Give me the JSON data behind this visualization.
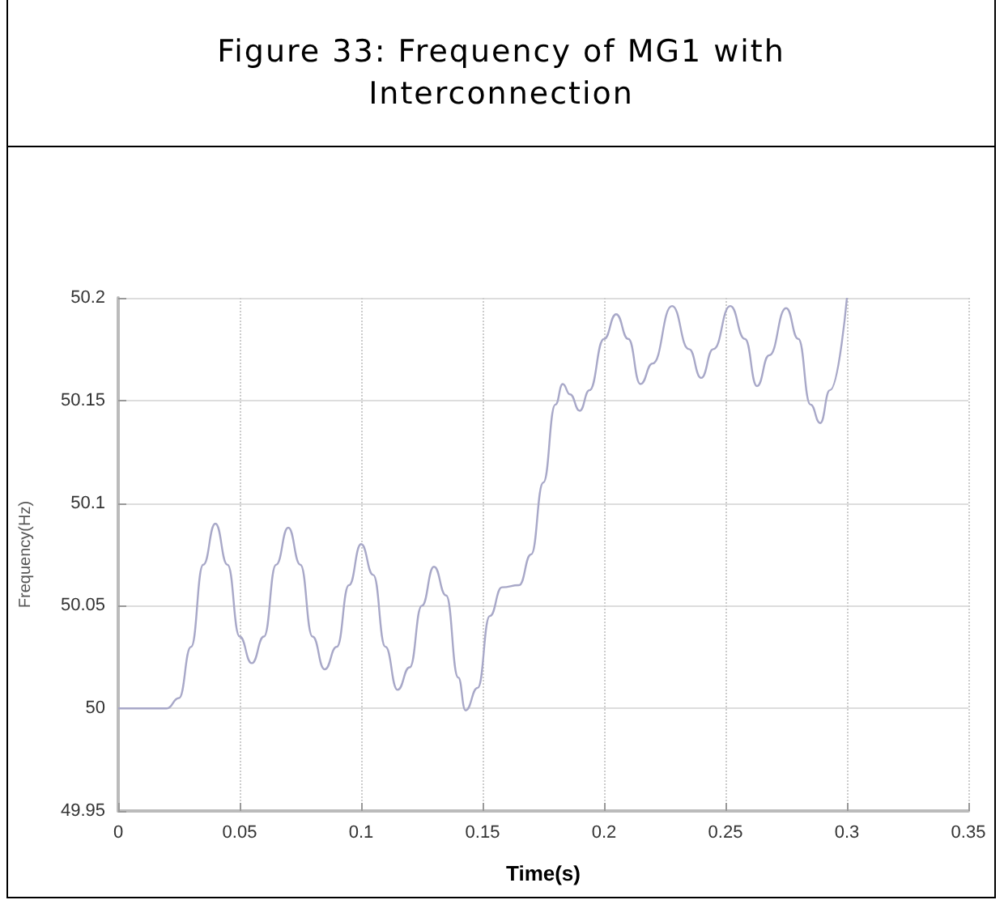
{
  "chart_data": {
    "type": "line",
    "title": "Figure 33: Frequency of MG1 with Interconnection",
    "xlabel": "Time(s)",
    "ylabel": "Frequency(Hz)",
    "x": [
      0,
      0.02,
      0.025,
      0.03,
      0.035,
      0.04,
      0.045,
      0.05,
      0.055,
      0.06,
      0.065,
      0.07,
      0.075,
      0.08,
      0.085,
      0.09,
      0.095,
      0.1,
      0.105,
      0.11,
      0.115,
      0.12,
      0.125,
      0.13,
      0.135,
      0.14,
      0.143,
      0.148,
      0.153,
      0.158,
      0.165,
      0.17,
      0.175,
      0.18,
      0.183,
      0.186,
      0.19,
      0.194,
      0.2,
      0.205,
      0.21,
      0.215,
      0.22,
      0.228,
      0.235,
      0.24,
      0.245,
      0.252,
      0.258,
      0.263,
      0.268,
      0.275,
      0.28,
      0.285,
      0.289,
      0.293,
      0.3
    ],
    "series": [
      {
        "color": "#a8a8c8",
        "values": [
          50,
          50,
          50.005,
          50.03,
          50.07,
          50.09,
          50.07,
          50.035,
          50.022,
          50.035,
          50.07,
          50.088,
          50.07,
          50.035,
          50.019,
          50.03,
          50.06,
          50.08,
          50.065,
          50.03,
          50.009,
          50.02,
          50.05,
          50.069,
          50.055,
          50.015,
          49.999,
          50.01,
          50.045,
          50.059,
          50.06,
          50.075,
          50.11,
          50.148,
          50.158,
          50.153,
          50.145,
          50.155,
          50.18,
          50.192,
          50.18,
          50.158,
          50.168,
          50.196,
          50.175,
          50.161,
          50.175,
          50.196,
          50.18,
          50.157,
          50.172,
          50.195,
          50.18,
          50.148,
          50.139,
          50.155,
          50.2
        ]
      }
    ],
    "xlim": [
      0,
      0.35
    ],
    "xticks": [
      0,
      0.05,
      0.1,
      0.15,
      0.2,
      0.25,
      0.3,
      0.35
    ],
    "ylim": [
      49.95,
      50.2
    ],
    "yticks": [
      49.95,
      50,
      50.05,
      50.1,
      50.15,
      50.2
    ],
    "grid": true,
    "marker": "none",
    "line_style": "solid"
  }
}
